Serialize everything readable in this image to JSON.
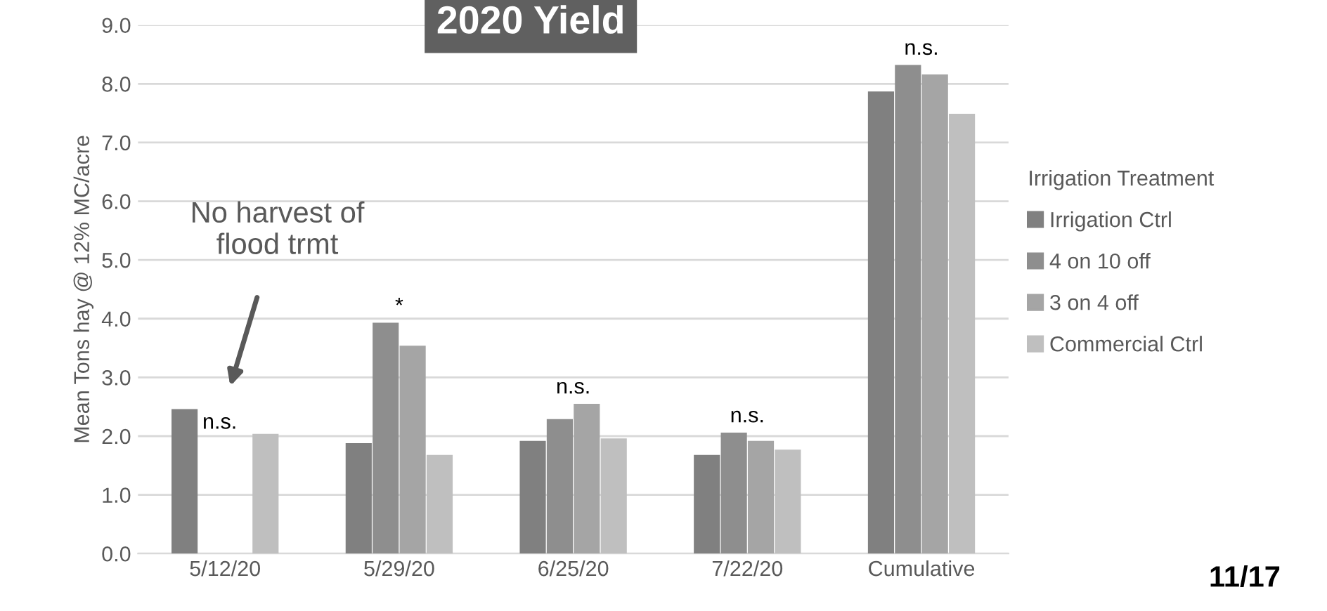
{
  "chart_data": {
    "type": "bar",
    "title": "2020 Yield",
    "ylabel": "Mean Tons hay @ 12% MC/acre",
    "legend_title": "Irrigation Treatment",
    "categories": [
      "5/12/20",
      "5/29/20",
      "6/25/20",
      "7/22/20",
      "Cumulative"
    ],
    "series": [
      {
        "name": "Irrigation Ctrl",
        "color": "#808080",
        "values": [
          2.46,
          1.88,
          1.92,
          1.68,
          7.87
        ]
      },
      {
        "name": "4 on 10 off",
        "color": "#8e8e8e",
        "values": [
          null,
          3.93,
          2.29,
          2.06,
          8.32
        ]
      },
      {
        "name": "3 on 4 off",
        "color": "#a5a5a5",
        "values": [
          null,
          3.54,
          2.55,
          1.92,
          8.16
        ]
      },
      {
        "name": "Commercial Ctrl",
        "color": "#bfbfbf",
        "values": [
          2.04,
          1.68,
          1.96,
          1.77,
          7.49
        ]
      }
    ],
    "ylim": [
      0,
      9
    ],
    "yticks": [
      {
        "value": 0,
        "label": "0.0"
      },
      {
        "value": 1,
        "label": "1.0"
      },
      {
        "value": 2,
        "label": "2.0"
      },
      {
        "value": 3,
        "label": "3.0"
      },
      {
        "value": 4,
        "label": "4.0"
      },
      {
        "value": 5,
        "label": "5.0"
      },
      {
        "value": 6,
        "label": "6.0"
      },
      {
        "value": 7,
        "label": "7.0"
      },
      {
        "value": 8,
        "label": "8.0"
      },
      {
        "value": 9,
        "label": "9.0"
      }
    ],
    "grid": "y",
    "legend": "right",
    "annotations": [
      "n.s.",
      {
        "text": "*",
        "x": "5/29/20",
        "y": 3.93
      },
      {
        "text": "n.s.",
        "x": "6/25/20",
        "y": 2.55
      },
      {
        "text": "n.s.",
        "x": "7/22/20",
        "y": 2.06
      },
      {
        "text": "n.s.",
        "x": "Cumulative",
        "y": 8.32
      },
      "No harvest of\nflood trmt",
      "11/17"
    ]
  }
}
